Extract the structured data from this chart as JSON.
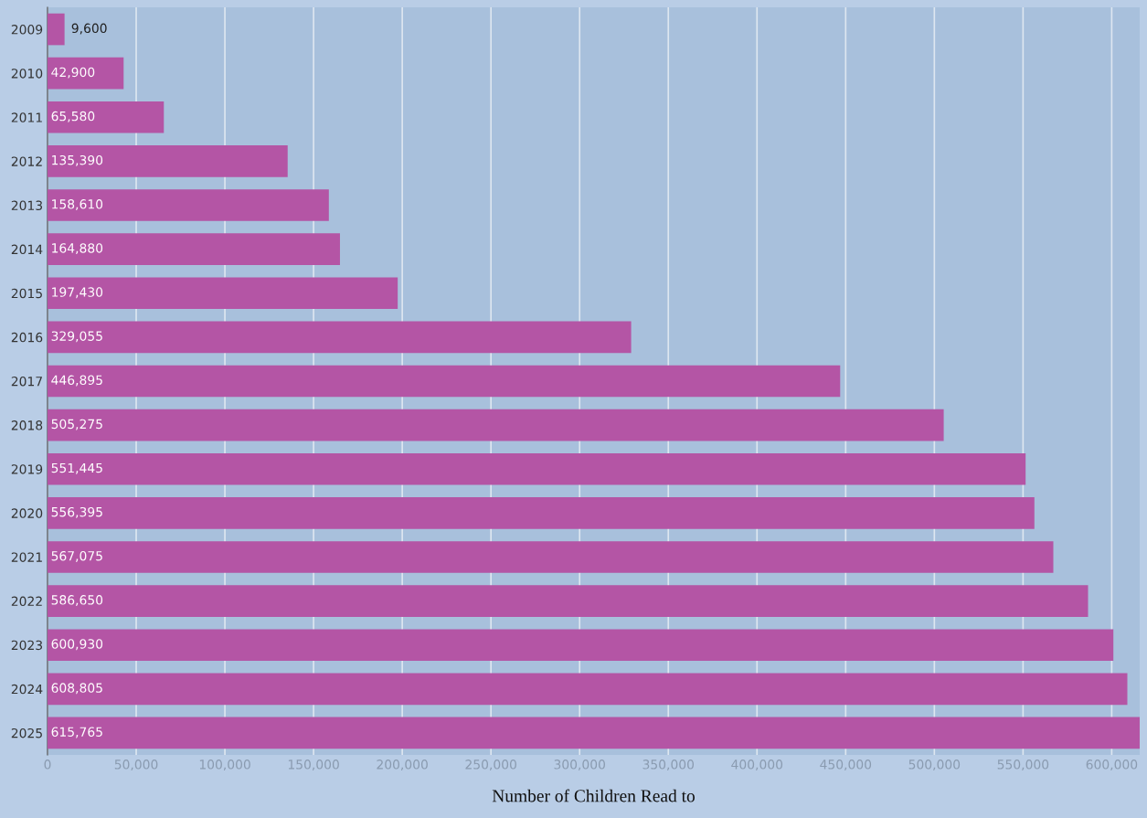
{
  "chart_data": {
    "type": "bar",
    "orientation": "horizontal",
    "xlabel": "Number of Children Read to",
    "categories": [
      "2009",
      "2010",
      "2011",
      "2012",
      "2013",
      "2014",
      "2015",
      "2016",
      "2017",
      "2018",
      "2019",
      "2020",
      "2021",
      "2022",
      "2023",
      "2024",
      "2025"
    ],
    "values": [
      9600,
      42900,
      65580,
      135390,
      158610,
      164880,
      197430,
      329055,
      446895,
      505275,
      551445,
      556395,
      567075,
      586650,
      600930,
      608805,
      615765
    ],
    "color": "#b455a5",
    "xlim": [
      0,
      615765
    ],
    "xticks": [
      0,
      {
        "value": 50000,
        "label": "50,000"
      },
      {
        "value": 100000,
        "label": "100,000"
      },
      {
        "value": 150000,
        "label": "150,000"
      },
      {
        "value": 200000,
        "label": "200,000"
      },
      {
        "value": 250000,
        "label": "250,000"
      },
      {
        "value": 300000,
        "label": "300,000"
      },
      {
        "value": 350000,
        "label": "350,000"
      },
      {
        "value": 400000,
        "label": "400,000"
      },
      {
        "value": 450000,
        "label": "450,000"
      },
      {
        "value": 500000,
        "label": "500,000"
      },
      {
        "value": 550000,
        "label": "550,000"
      },
      {
        "value": 600000,
        "label": "600,000"
      }
    ],
    "value_labels": [
      "9,600",
      "42,900",
      "65,580",
      "135,390",
      "158,610",
      "164,880",
      "197,430",
      "329,055",
      "446,895",
      "505,275",
      "551,445",
      "556,395",
      "567,075",
      "586,650",
      "600,930",
      "608,805",
      "615,765"
    ],
    "grid": "x"
  }
}
